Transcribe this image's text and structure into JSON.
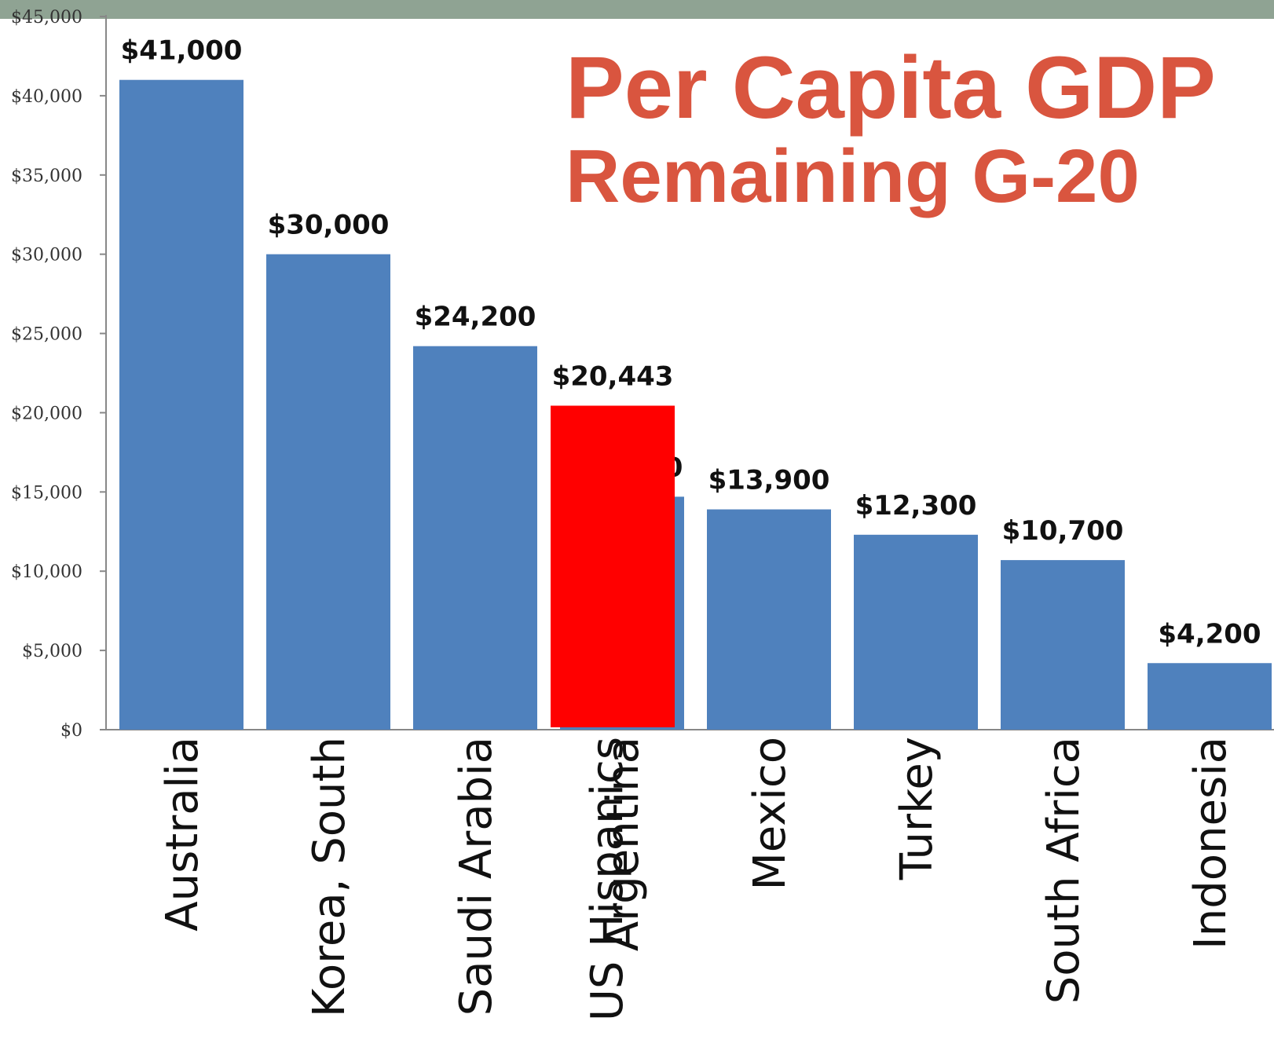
{
  "chart_data": {
    "type": "bar",
    "title": "Per Capita GDP",
    "subtitle": "Remaining G-20",
    "ylim": [
      0,
      45000
    ],
    "y_ticks": [
      "$0",
      "$5,000",
      "$10,000",
      "$15,000",
      "$20,000",
      "$25,000",
      "$30,000",
      "$35,000",
      "$40,000",
      "$45,000"
    ],
    "y_tick_values": [
      0,
      5000,
      10000,
      15000,
      20000,
      25000,
      30000,
      35000,
      40000,
      45000
    ],
    "grid": false,
    "categories": [
      "Australia",
      "Korea, South",
      "Saudi Arabia",
      "Argentina",
      "Mexico",
      "Turkey",
      "South Africa",
      "Indonesia"
    ],
    "values": [
      41000,
      30000,
      24200,
      14700,
      13900,
      12300,
      10700,
      4200
    ],
    "data_labels": [
      "$41,000",
      "$30,000",
      "$24,200",
      "$14,700",
      "$13,900",
      "$12,300",
      "$10,700",
      "$4,200"
    ],
    "overlay": {
      "category": "US Hispanics",
      "value": 20443,
      "data_label": "$20,443",
      "position_index": 3,
      "color": "#ff0000"
    },
    "bar_color": "#4f81bd"
  },
  "colors": {
    "title": "#d9553f",
    "band": "#8fa393"
  }
}
